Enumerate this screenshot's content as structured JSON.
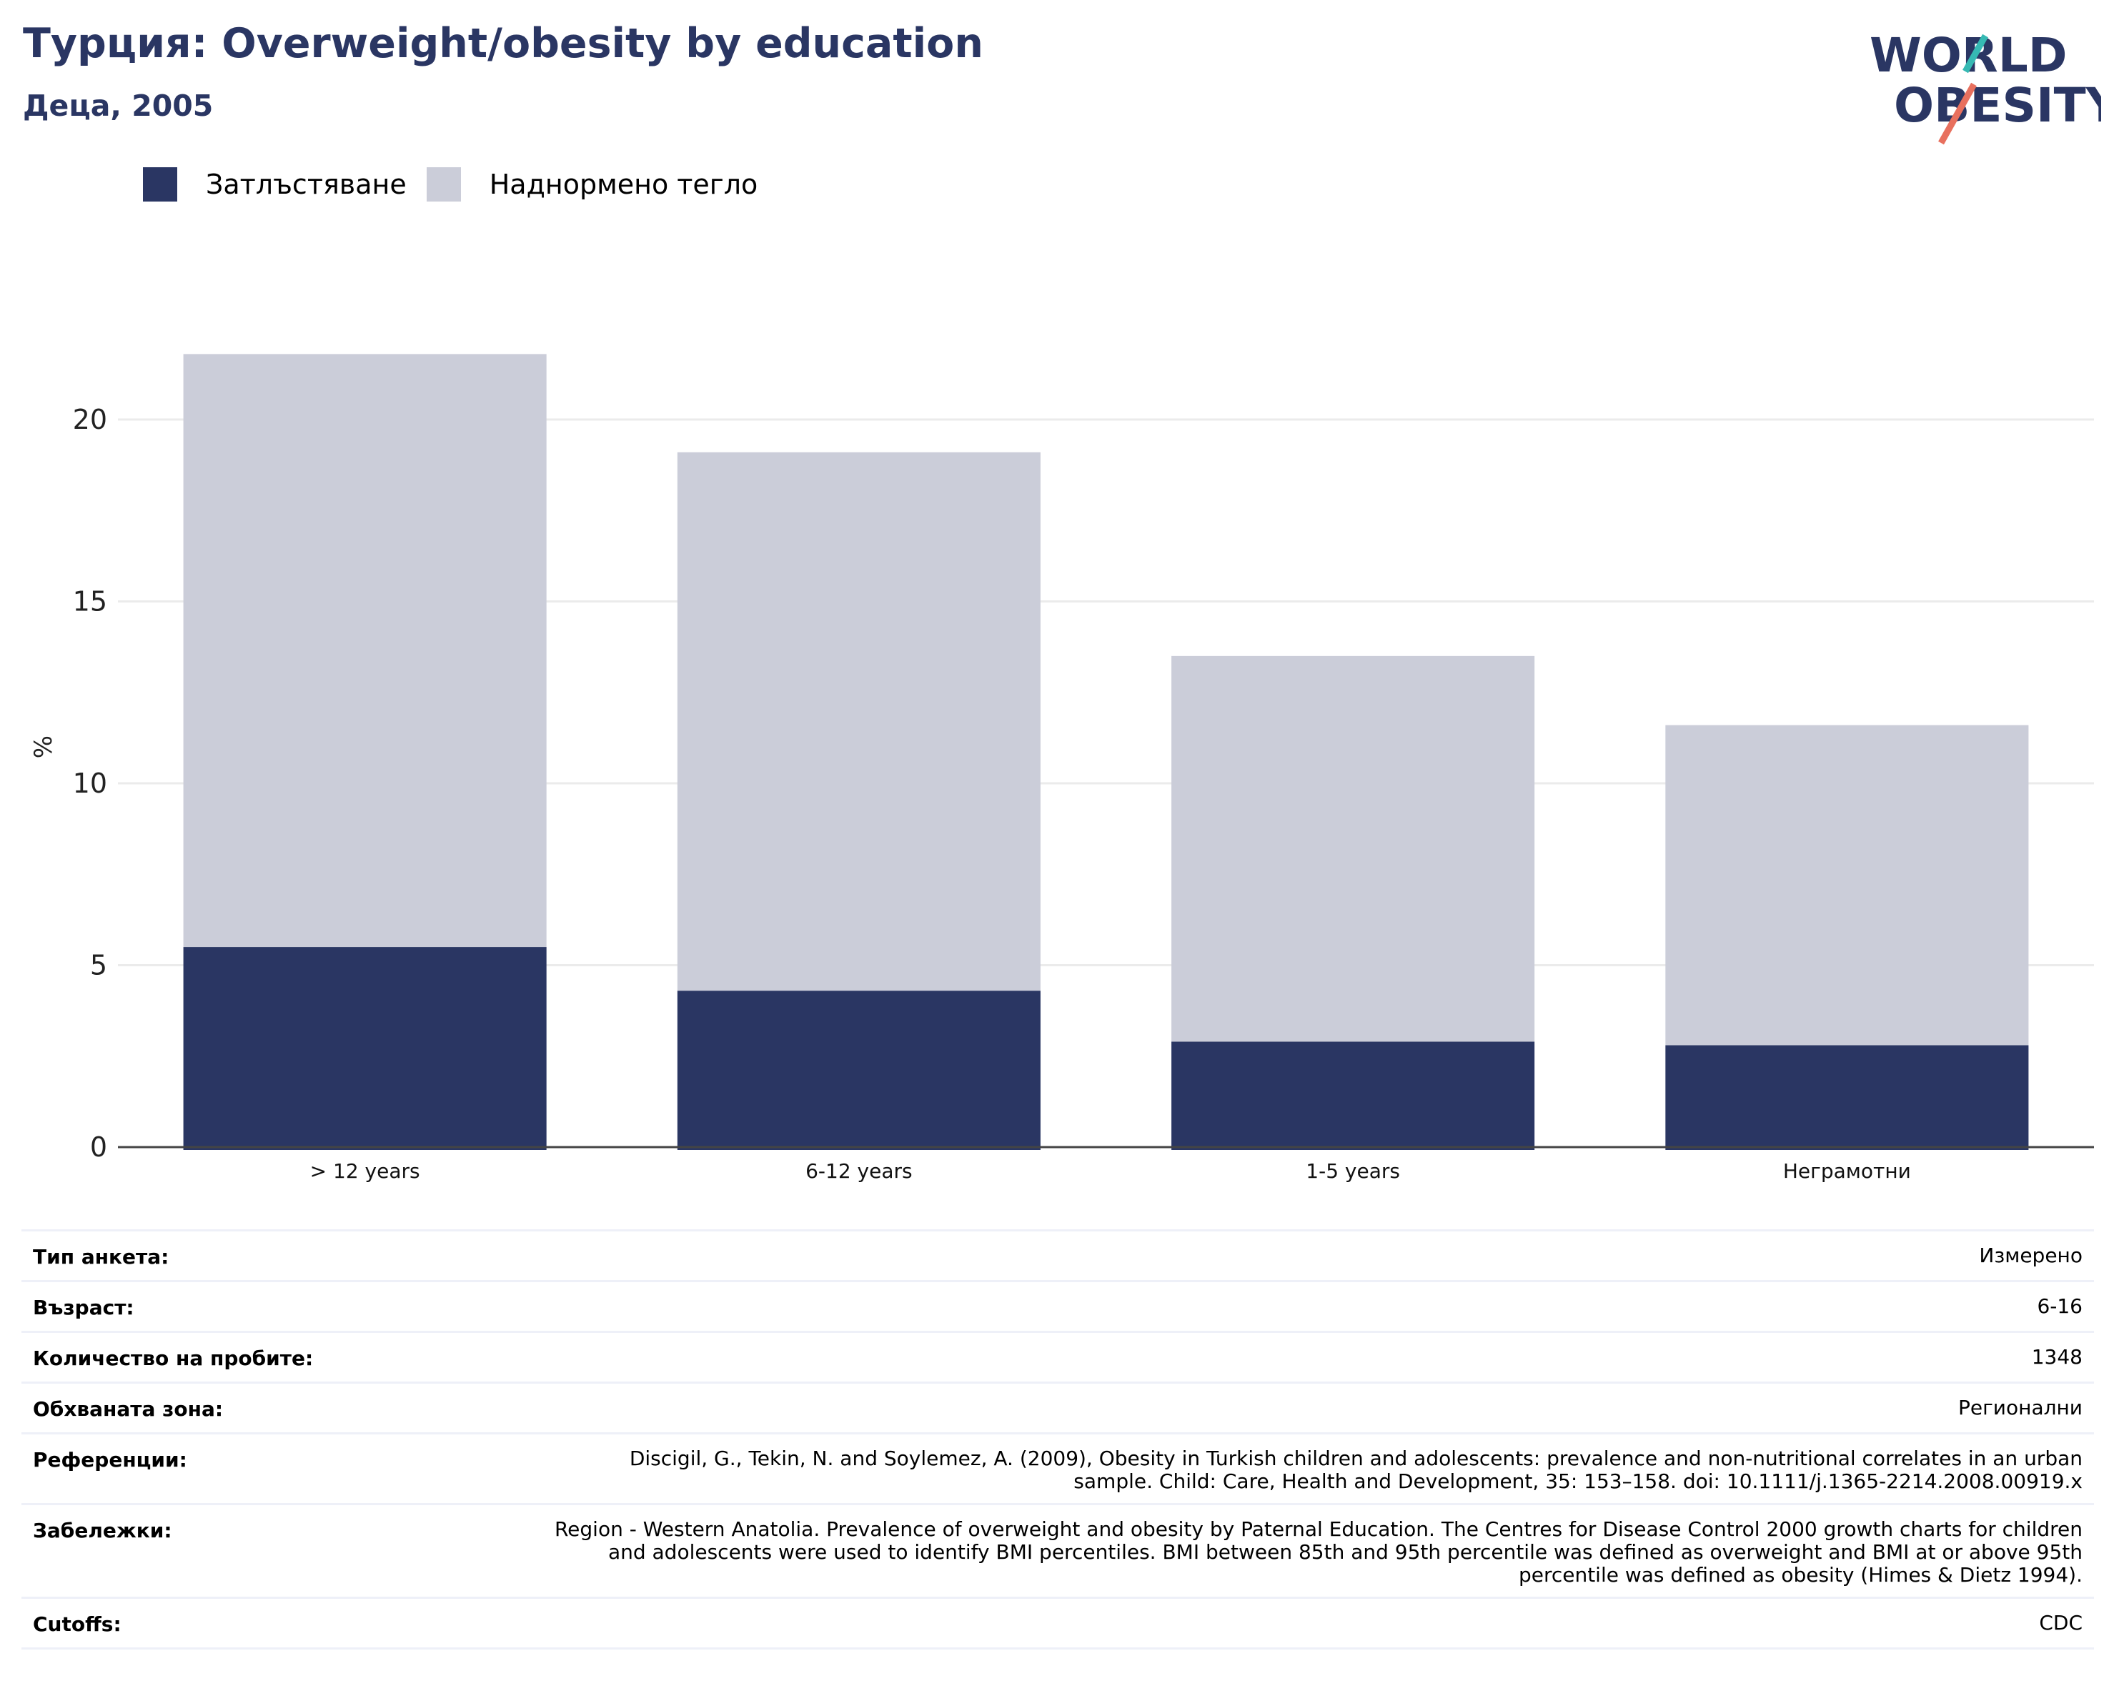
{
  "header": {
    "title": "Турция: Overweight/obesity by education",
    "subtitle": "Деца, 2005"
  },
  "logo": {
    "line1": "WORLD",
    "line2": "OBESITY"
  },
  "colors": {
    "obesity": "#2a3663",
    "overweight": "#cbcdd9",
    "accent_teal": "#36b9b3",
    "accent_coral": "#e8705e",
    "grid": "#ebebeb"
  },
  "chart_data": {
    "type": "bar",
    "stacked": true,
    "categories": [
      "> 12 years",
      "6-12 years",
      "1-5 years",
      "Неграмотни"
    ],
    "series": [
      {
        "name": "Затлъстяване",
        "values": [
          5.5,
          4.3,
          2.9,
          2.8
        ]
      },
      {
        "name": "Наднормено тегло",
        "values": [
          16.3,
          14.8,
          10.6,
          8.8
        ]
      }
    ],
    "totals": [
      21.8,
      19.1,
      13.5,
      11.6
    ],
    "ylabel": "%",
    "xlabel": "",
    "ylim": [
      0,
      22
    ],
    "yticks": [
      0,
      5,
      10,
      15,
      20
    ],
    "grid": true,
    "legend_position": "top-left"
  },
  "meta": [
    {
      "key": "Тип анкета:",
      "value": "Измерено"
    },
    {
      "key": "Възраст:",
      "value": "6-16"
    },
    {
      "key": "Количество на пробите:",
      "value": "1348"
    },
    {
      "key": "Обхваната зона:",
      "value": "Регионални"
    },
    {
      "key": "Референции:",
      "value": "Discigil, G., Tekin, N. and Soylemez, A. (2009), Obesity in Turkish children and adolescents: prevalence and non-nutritional correlates in an urban sample. Child: Care, Health and Development, 35: 153–158. doi: 10.1111/j.1365-2214.2008.00919.x"
    },
    {
      "key": "Забележки:",
      "value": "Region - Western Anatolia. Prevalence of overweight and obesity by Paternal Education. The Centres for Disease Control 2000 growth charts for children and adolescents were used to identify BMI percentiles. BMI between 85th and 95th percentile was defined as overweight and BMI at or above 95th percentile was defined as obesity (Himes & Dietz 1994)."
    },
    {
      "key": "Cutoffs:",
      "value": "CDC"
    }
  ]
}
